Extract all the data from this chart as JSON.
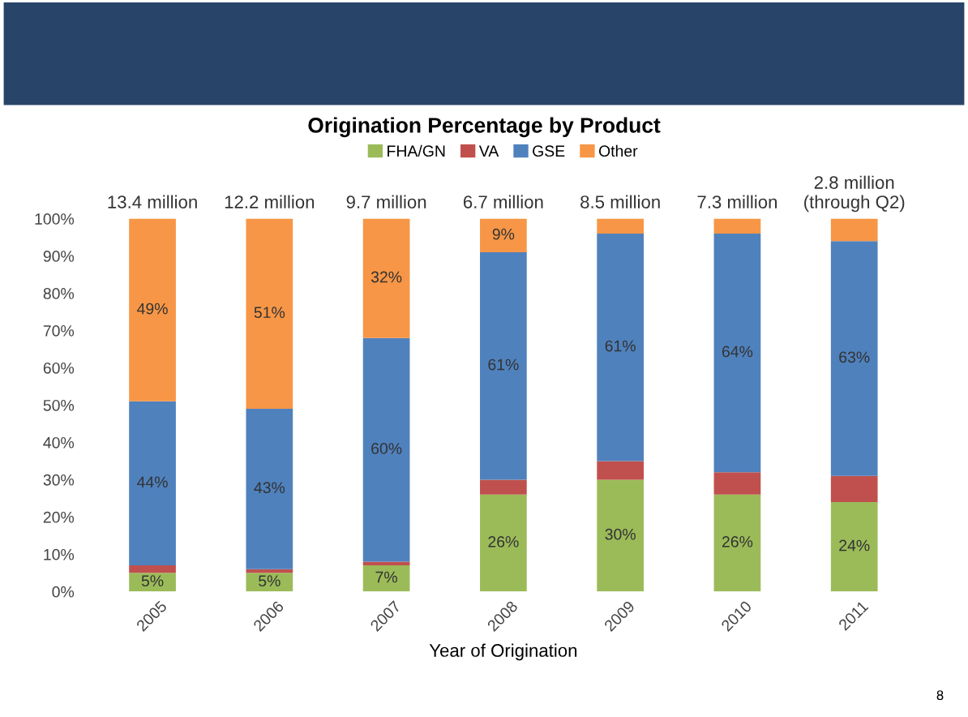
{
  "chart_data": {
    "type": "bar",
    "title": "Origination Percentage by Product",
    "xlabel": "Year of Origination",
    "categories": [
      "2005",
      "2006",
      "2007",
      "2008",
      "2009",
      "2010",
      "2011"
    ],
    "stacked": true,
    "series": [
      {
        "name": "FHA/GN",
        "color": "#9bbb59",
        "values": [
          5,
          5,
          7,
          26,
          30,
          26,
          24
        ],
        "value_labels": [
          "5%",
          "5%",
          "7%",
          "26%",
          "30%",
          "26%",
          "24%"
        ]
      },
      {
        "name": "VA",
        "color": "#c0504d",
        "values": [
          2,
          1,
          1,
          4,
          5,
          6,
          7
        ],
        "value_labels": [
          null,
          null,
          null,
          null,
          null,
          null,
          null
        ]
      },
      {
        "name": "GSE",
        "color": "#4f81bd",
        "values": [
          44,
          43,
          60,
          61,
          61,
          64,
          63
        ],
        "value_labels": [
          "44%",
          "43%",
          "60%",
          "61%",
          "61%",
          "64%",
          "63%"
        ]
      },
      {
        "name": "Other",
        "color": "#f79646",
        "values": [
          49,
          51,
          32,
          9,
          4,
          4,
          6
        ],
        "value_labels": [
          "49%",
          "51%",
          "32%",
          "9%",
          null,
          null,
          null
        ]
      }
    ],
    "ylim": [
      0,
      100
    ],
    "yticks": [
      {
        "value": 0,
        "label": "0%"
      },
      {
        "value": 10,
        "label": "10%"
      },
      {
        "value": 20,
        "label": "20%"
      },
      {
        "value": 30,
        "label": "30%"
      },
      {
        "value": 40,
        "label": "40%"
      },
      {
        "value": 50,
        "label": "50%"
      },
      {
        "value": 60,
        "label": "60%"
      },
      {
        "value": 70,
        "label": "70%"
      },
      {
        "value": 80,
        "label": "80%"
      },
      {
        "value": 90,
        "label": "90%"
      },
      {
        "value": 100,
        "label": "100%"
      }
    ],
    "legend": "top",
    "grid": false,
    "annotations": [
      {
        "text": "13.4 million",
        "x": "2005",
        "y": 100
      },
      {
        "text": "12.2 million",
        "x": "2006",
        "y": 100
      },
      {
        "text": "9.7 million",
        "x": "2007",
        "y": 100
      },
      {
        "text": "6.7 million",
        "x": "2008",
        "y": 100
      },
      {
        "text": "8.5 million",
        "x": "2009",
        "y": 100
      },
      {
        "text": "7.3 million",
        "x": "2010",
        "y": 100
      },
      {
        "text": "2.8 million\n(through Q2)",
        "x": "2011",
        "y": 100
      },
      "8"
    ]
  }
}
